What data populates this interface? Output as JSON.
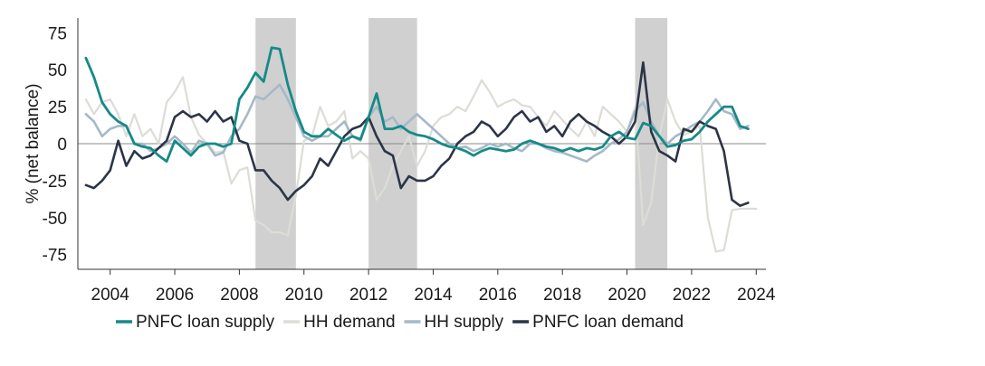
{
  "chart_data": {
    "type": "line",
    "title": "",
    "xlabel": "",
    "ylabel": "% (net balance)",
    "xlim": [
      2003,
      2024.3
    ],
    "ylim": [
      -85,
      85
    ],
    "x_ticks": [
      2004,
      2006,
      2008,
      2010,
      2012,
      2014,
      2016,
      2018,
      2020,
      2022,
      2024
    ],
    "x_tick_labels": [
      "2004",
      "2006",
      "2008",
      "2010",
      "2012",
      "2014",
      "2016",
      "2018",
      "2020",
      "2022",
      "2024"
    ],
    "y_ticks": [
      75,
      50,
      25,
      0,
      -25,
      -50,
      -75
    ],
    "y_tick_labels": [
      "75",
      "50",
      "25",
      "0",
      "-25",
      "-50",
      "-75"
    ],
    "grid": false,
    "zero_line": true,
    "legend_position": "bottom",
    "recession_bands": [
      {
        "start": 2008.5,
        "end": 2009.75
      },
      {
        "start": 2012.0,
        "end": 2013.5
      },
      {
        "start": 2020.25,
        "end": 2021.25
      }
    ],
    "series": [
      {
        "name": "HH demand",
        "color": "#dcddd6",
        "stroke_width": 2.2,
        "x": [
          2003.25,
          2003.5,
          2003.75,
          2004,
          2004.25,
          2004.5,
          2004.75,
          2005,
          2005.25,
          2005.5,
          2005.75,
          2006,
          2006.25,
          2006.5,
          2006.75,
          2007,
          2007.25,
          2007.5,
          2007.75,
          2008,
          2008.25,
          2008.5,
          2008.75,
          2009,
          2009.25,
          2009.5,
          2009.75,
          2010,
          2010.25,
          2010.5,
          2010.75,
          2011,
          2011.25,
          2011.5,
          2011.75,
          2012,
          2012.25,
          2012.5,
          2012.75,
          2013,
          2013.25,
          2013.5,
          2013.75,
          2014,
          2014.25,
          2014.5,
          2014.75,
          2015,
          2015.25,
          2015.5,
          2015.75,
          2016,
          2016.25,
          2016.5,
          2016.75,
          2017,
          2017.25,
          2017.5,
          2017.75,
          2018,
          2018.25,
          2018.5,
          2018.75,
          2019,
          2019.25,
          2019.5,
          2019.75,
          2020,
          2020.25,
          2020.5,
          2020.75,
          2021,
          2021.25,
          2021.5,
          2021.75,
          2022,
          2022.25,
          2022.5,
          2022.75,
          2023,
          2023.25,
          2023.5,
          2023.75,
          2024
        ],
        "values": [
          30,
          20,
          28,
          30,
          20,
          5,
          20,
          5,
          10,
          0,
          28,
          35,
          45,
          18,
          6,
          0,
          -6,
          -5,
          -27,
          -18,
          -16,
          -52,
          -55,
          -60,
          -60,
          -62,
          -35,
          2,
          5,
          25,
          12,
          15,
          22,
          -10,
          -5,
          -10,
          -38,
          -30,
          -15,
          -5,
          5,
          -15,
          -5,
          12,
          18,
          20,
          25,
          22,
          32,
          43,
          35,
          25,
          28,
          30,
          26,
          25,
          18,
          12,
          22,
          16,
          10,
          5,
          15,
          5,
          25,
          20,
          15,
          8,
          25,
          -55,
          -40,
          5,
          30,
          15,
          6,
          8,
          12,
          -50,
          -73,
          -72,
          -45,
          -44,
          -44,
          -44
        ],
        "x_end_clip": 2023.85
      },
      {
        "name": "HH supply",
        "color": "#a5b9c6",
        "stroke_width": 2.6,
        "x": [
          2003.25,
          2003.5,
          2003.75,
          2004,
          2004.25,
          2004.5,
          2004.75,
          2005,
          2005.25,
          2005.5,
          2005.75,
          2006,
          2006.25,
          2006.5,
          2006.75,
          2007,
          2007.25,
          2007.5,
          2007.75,
          2008,
          2008.25,
          2008.5,
          2008.75,
          2009,
          2009.25,
          2009.5,
          2009.75,
          2010,
          2010.25,
          2010.5,
          2010.75,
          2011,
          2011.25,
          2011.5,
          2011.75,
          2012,
          2012.25,
          2012.5,
          2012.75,
          2013,
          2013.25,
          2013.5,
          2013.75,
          2014,
          2014.25,
          2014.5,
          2014.75,
          2015,
          2015.25,
          2015.5,
          2015.75,
          2016,
          2016.25,
          2016.5,
          2016.75,
          2017,
          2017.25,
          2017.5,
          2017.75,
          2018,
          2018.25,
          2018.5,
          2018.75,
          2019,
          2019.25,
          2019.5,
          2019.75,
          2020,
          2020.25,
          2020.5,
          2020.75,
          2021,
          2021.25,
          2021.5,
          2021.75,
          2022,
          2022.25,
          2022.5,
          2022.75,
          2023,
          2023.25,
          2023.5,
          2023.75
        ],
        "values": [
          20,
          15,
          5,
          10,
          12,
          12,
          0,
          0,
          -5,
          -3,
          0,
          5,
          0,
          -6,
          2,
          0,
          -8,
          -6,
          5,
          10,
          20,
          32,
          30,
          35,
          40,
          30,
          18,
          5,
          2,
          5,
          5,
          10,
          15,
          5,
          2,
          18,
          25,
          15,
          18,
          10,
          15,
          20,
          15,
          10,
          5,
          0,
          -3,
          -2,
          -5,
          -3,
          0,
          -2,
          0,
          -3,
          -5,
          0,
          0,
          -3,
          -5,
          -6,
          -8,
          -10,
          -12,
          -8,
          -5,
          0,
          3,
          8,
          22,
          28,
          15,
          5,
          0,
          5,
          8,
          12,
          15,
          22,
          30,
          22,
          20,
          10,
          12
        ]
      },
      {
        "name": "PNFC loan demand",
        "color": "#2c3546",
        "stroke_width": 2.6,
        "x": [
          2003.25,
          2003.5,
          2003.75,
          2004,
          2004.25,
          2004.5,
          2004.75,
          2005,
          2005.25,
          2005.5,
          2005.75,
          2006,
          2006.25,
          2006.5,
          2006.75,
          2007,
          2007.25,
          2007.5,
          2007.75,
          2008,
          2008.25,
          2008.5,
          2008.75,
          2009,
          2009.25,
          2009.5,
          2009.75,
          2010,
          2010.25,
          2010.5,
          2010.75,
          2011,
          2011.25,
          2011.5,
          2011.75,
          2012,
          2012.25,
          2012.5,
          2012.75,
          2013,
          2013.25,
          2013.5,
          2013.75,
          2014,
          2014.25,
          2014.5,
          2014.75,
          2015,
          2015.25,
          2015.5,
          2015.75,
          2016,
          2016.25,
          2016.5,
          2016.75,
          2017,
          2017.25,
          2017.5,
          2017.75,
          2018,
          2018.25,
          2018.5,
          2018.75,
          2019,
          2019.25,
          2019.5,
          2019.75,
          2020,
          2020.25,
          2020.5,
          2020.75,
          2021,
          2021.25,
          2021.5,
          2021.75,
          2022,
          2022.25,
          2022.5,
          2022.75,
          2023,
          2023.25,
          2023.5,
          2023.75
        ],
        "values": [
          -28,
          -30,
          -25,
          -18,
          2,
          -15,
          -5,
          -10,
          -8,
          -3,
          2,
          18,
          22,
          18,
          20,
          15,
          22,
          15,
          18,
          2,
          0,
          -18,
          -18,
          -25,
          -30,
          -38,
          -32,
          -28,
          -22,
          -10,
          -15,
          -5,
          5,
          10,
          12,
          18,
          5,
          -5,
          -8,
          -30,
          -22,
          -25,
          -25,
          -22,
          -15,
          -10,
          0,
          5,
          8,
          15,
          12,
          5,
          10,
          18,
          22,
          15,
          18,
          8,
          12,
          5,
          15,
          20,
          15,
          12,
          8,
          5,
          0,
          5,
          15,
          55,
          8,
          -5,
          -8,
          -12,
          10,
          8,
          15,
          12,
          10,
          -5,
          -38,
          -42,
          -40
        ]
      },
      {
        "name": "PNFC loan supply",
        "color": "#168a88",
        "stroke_width": 2.8,
        "x": [
          2003.25,
          2003.5,
          2003.75,
          2004,
          2004.25,
          2004.5,
          2004.75,
          2005,
          2005.25,
          2005.5,
          2005.75,
          2006,
          2006.25,
          2006.5,
          2006.75,
          2007,
          2007.25,
          2007.5,
          2007.75,
          2008,
          2008.25,
          2008.5,
          2008.75,
          2009,
          2009.25,
          2009.5,
          2009.75,
          2010,
          2010.25,
          2010.5,
          2010.75,
          2011,
          2011.25,
          2011.5,
          2011.75,
          2012,
          2012.25,
          2012.5,
          2012.75,
          2013,
          2013.25,
          2013.5,
          2013.75,
          2014,
          2014.25,
          2014.5,
          2014.75,
          2015,
          2015.25,
          2015.5,
          2015.75,
          2016,
          2016.25,
          2016.5,
          2016.75,
          2017,
          2017.25,
          2017.5,
          2017.75,
          2018,
          2018.25,
          2018.5,
          2018.75,
          2019,
          2019.25,
          2019.5,
          2019.75,
          2020,
          2020.25,
          2020.5,
          2020.75,
          2021,
          2021.25,
          2021.5,
          2021.75,
          2022,
          2022.25,
          2022.5,
          2022.75,
          2023,
          2023.25,
          2023.5,
          2023.75
        ],
        "values": [
          58,
          45,
          28,
          20,
          15,
          12,
          0,
          -2,
          -3,
          -8,
          -12,
          2,
          -3,
          -8,
          -2,
          0,
          0,
          -2,
          0,
          30,
          38,
          48,
          42,
          65,
          64,
          40,
          22,
          8,
          5,
          5,
          10,
          6,
          2,
          5,
          3,
          18,
          34,
          10,
          10,
          12,
          8,
          6,
          5,
          3,
          0,
          -2,
          -3,
          -5,
          -8,
          -5,
          -3,
          -4,
          -5,
          -4,
          0,
          2,
          0,
          -2,
          -3,
          -5,
          -3,
          -5,
          -3,
          -4,
          -2,
          5,
          8,
          4,
          3,
          14,
          12,
          5,
          -2,
          -1,
          2,
          3,
          8,
          15,
          20,
          25,
          25,
          12,
          10
        ]
      }
    ]
  },
  "legend": {
    "items": [
      {
        "label": "PNFC loan supply",
        "color": "#168a88"
      },
      {
        "label": "HH demand",
        "color": "#dcddd6"
      },
      {
        "label": "HH supply",
        "color": "#a5b9c6"
      },
      {
        "label": "PNFC loan demand",
        "color": "#2c3546"
      }
    ]
  }
}
